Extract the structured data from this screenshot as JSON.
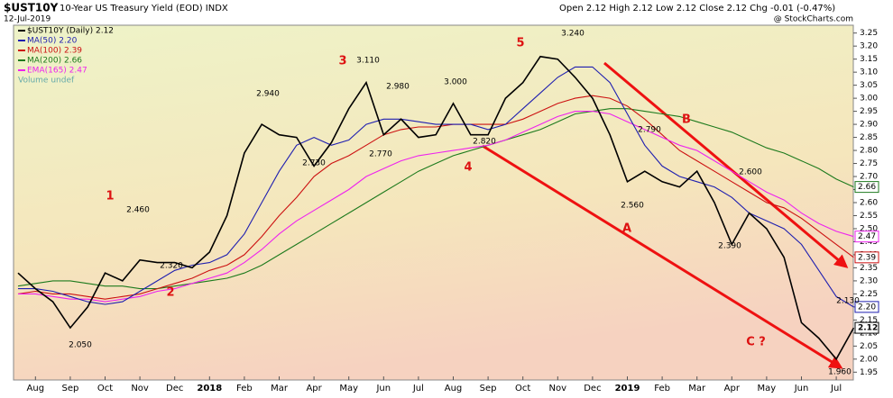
{
  "chart_data": {
    "type": "line",
    "symbol": "$UST10Y",
    "title": "10-Year US Treasury Yield (EOD) INDX",
    "date": "12-Jul-2019",
    "quote": "Open 2.12 High 2.12 Low 2.12 Close 2.12 Chg -0.01 (-0.47%)",
    "source": "@ StockCharts.com",
    "volume_legend": "Volume undef",
    "categories": [
      null,
      "Aug",
      null,
      "Sep",
      null,
      "Oct",
      null,
      "Nov",
      null,
      "Dec",
      null,
      "2018",
      null,
      "Feb",
      null,
      "Mar",
      null,
      "Apr",
      null,
      "May",
      null,
      "Jun",
      null,
      "Jul",
      null,
      "Aug",
      null,
      "Sep",
      null,
      "Oct",
      null,
      "Nov",
      null,
      "Dec",
      null,
      "2019",
      null,
      "Feb",
      null,
      "Mar",
      null,
      "Apr",
      null,
      "May",
      null,
      "Jun",
      null,
      "Jul",
      null
    ],
    "series": [
      {
        "name": "$UST10Y (Daily) 2.12",
        "color": "#000000",
        "last_label": "2.12",
        "values": [
          2.33,
          2.27,
          2.22,
          2.12,
          2.2,
          2.33,
          2.3,
          2.38,
          2.37,
          2.37,
          2.35,
          2.41,
          2.55,
          2.79,
          2.9,
          2.86,
          2.85,
          2.74,
          2.83,
          2.96,
          3.06,
          2.86,
          2.92,
          2.85,
          2.86,
          2.98,
          2.86,
          2.86,
          3.0,
          3.06,
          3.16,
          3.15,
          3.08,
          3.0,
          2.86,
          2.68,
          2.72,
          2.68,
          2.66,
          2.72,
          2.6,
          2.44,
          2.56,
          2.5,
          2.39,
          2.14,
          2.08,
          2.0,
          2.12
        ]
      },
      {
        "name": "MA(50) 2.20",
        "color": "#1f1fb0",
        "last_label": "2.20",
        "values": [
          2.27,
          2.27,
          2.26,
          2.24,
          2.22,
          2.21,
          2.22,
          2.26,
          2.3,
          2.34,
          2.36,
          2.37,
          2.4,
          2.48,
          2.6,
          2.72,
          2.82,
          2.85,
          2.82,
          2.84,
          2.9,
          2.92,
          2.92,
          2.91,
          2.9,
          2.9,
          2.9,
          2.88,
          2.9,
          2.96,
          3.02,
          3.08,
          3.12,
          3.12,
          3.06,
          2.94,
          2.82,
          2.74,
          2.7,
          2.68,
          2.66,
          2.62,
          2.56,
          2.53,
          2.5,
          2.44,
          2.34,
          2.24,
          2.2
        ]
      },
      {
        "name": "MA(100) 2.39",
        "color": "#cc1111",
        "last_label": "2.39",
        "values": [
          2.25,
          2.26,
          2.25,
          2.25,
          2.24,
          2.23,
          2.24,
          2.25,
          2.27,
          2.29,
          2.31,
          2.34,
          2.36,
          2.4,
          2.47,
          2.55,
          2.62,
          2.7,
          2.75,
          2.78,
          2.82,
          2.86,
          2.88,
          2.89,
          2.89,
          2.9,
          2.9,
          2.9,
          2.9,
          2.92,
          2.95,
          2.98,
          3.0,
          3.01,
          3.0,
          2.97,
          2.92,
          2.86,
          2.8,
          2.76,
          2.72,
          2.68,
          2.64,
          2.6,
          2.58,
          2.54,
          2.49,
          2.44,
          2.39
        ]
      },
      {
        "name": "MA(200) 2.66",
        "color": "#1d7a1d",
        "last_label": "2.66",
        "values": [
          2.28,
          2.29,
          2.3,
          2.3,
          2.29,
          2.28,
          2.28,
          2.27,
          2.27,
          2.28,
          2.29,
          2.3,
          2.31,
          2.33,
          2.36,
          2.4,
          2.44,
          2.48,
          2.52,
          2.56,
          2.6,
          2.64,
          2.68,
          2.72,
          2.75,
          2.78,
          2.8,
          2.82,
          2.84,
          2.86,
          2.88,
          2.91,
          2.94,
          2.95,
          2.96,
          2.96,
          2.95,
          2.94,
          2.93,
          2.91,
          2.89,
          2.87,
          2.84,
          2.81,
          2.79,
          2.76,
          2.73,
          2.69,
          2.66
        ]
      },
      {
        "name": "EMA(165) 2.47",
        "color": "#ee22ee",
        "last_label": "2.47",
        "values": [
          2.25,
          2.25,
          2.24,
          2.23,
          2.23,
          2.22,
          2.23,
          2.24,
          2.26,
          2.27,
          2.29,
          2.31,
          2.33,
          2.37,
          2.42,
          2.48,
          2.53,
          2.57,
          2.61,
          2.65,
          2.7,
          2.73,
          2.76,
          2.78,
          2.79,
          2.8,
          2.81,
          2.82,
          2.84,
          2.87,
          2.9,
          2.93,
          2.95,
          2.95,
          2.94,
          2.91,
          2.88,
          2.85,
          2.82,
          2.8,
          2.76,
          2.72,
          2.68,
          2.64,
          2.61,
          2.56,
          2.52,
          2.49,
          2.47
        ]
      }
    ],
    "ylim": [
      1.92,
      3.28
    ],
    "yticks": [
      3.25,
      {
        "value": 3.2,
        "label": "3.20"
      },
      3.15,
      {
        "value": 3.1,
        "label": "3.10"
      },
      3.05,
      {
        "value": 3.0,
        "label": "3.00"
      },
      2.95,
      {
        "value": 2.9,
        "label": "2.90"
      },
      2.85,
      {
        "value": 2.8,
        "label": "2.80"
      },
      2.75,
      {
        "value": 2.7,
        "label": "2.70"
      },
      2.65,
      {
        "value": 2.6,
        "label": "2.60"
      },
      2.55,
      {
        "value": 2.5,
        "label": "2.50"
      },
      2.45,
      {
        "value": 2.4,
        "label": "2.40"
      },
      2.35,
      {
        "value": 2.3,
        "label": "2.30"
      },
      2.25,
      {
        "value": 2.2,
        "label": "2.20"
      },
      2.15,
      {
        "value": 2.1,
        "label": "2.10"
      },
      2.05,
      {
        "value": 2.0,
        "label": "2.00"
      },
      1.95
    ],
    "price_labels": [
      "2.050",
      "2.460",
      "2.320",
      "2.940",
      "2.730",
      "3.110",
      "2.770",
      "2.980",
      "3.000",
      "2.820",
      "3.240",
      "2.560",
      "2.790",
      "2.600",
      "2.390",
      "2.130",
      "1.960"
    ],
    "wave_labels": [
      "1",
      "2",
      "3",
      "4",
      "5",
      "A",
      "B",
      "C ?"
    ]
  }
}
